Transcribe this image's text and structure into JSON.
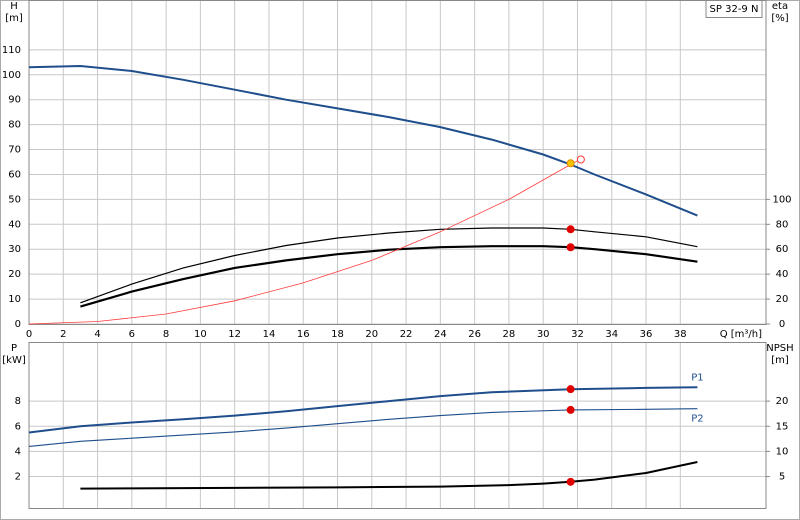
{
  "chart_data": [
    {
      "type": "line",
      "model": "SP 32-9 N",
      "ylabel": [
        "H",
        "[m]"
      ],
      "y2label": [
        "eta",
        "[%]"
      ],
      "xlabel": "Q [m³/h]",
      "xlim": [
        0,
        43
      ],
      "xticks": [
        0,
        2,
        4,
        6,
        8,
        10,
        12,
        14,
        16,
        18,
        20,
        22,
        24,
        26,
        28,
        30,
        32,
        34,
        36,
        38
      ],
      "ylim": [
        0,
        130
      ],
      "yticks": [
        0,
        10,
        20,
        30,
        40,
        50,
        60,
        70,
        80,
        90,
        100,
        110
      ],
      "y2lim": [
        0,
        260
      ],
      "y2ticks": [
        0,
        20,
        40,
        60,
        80,
        100
      ],
      "grid": true,
      "series": [
        {
          "color": "#1f4e8c",
          "width": 2,
          "x": [
            0,
            3,
            6,
            9,
            12,
            15,
            18,
            21,
            24,
            27,
            30,
            31.6,
            33,
            36,
            39
          ],
          "values": [
            103,
            103.5,
            101.5,
            98,
            94,
            90,
            86.5,
            83,
            79,
            74,
            68,
            64,
            60,
            52,
            43.5
          ]
        },
        {
          "color": "#000000",
          "width": 1.2,
          "axis": "y2",
          "x": [
            3,
            6,
            9,
            12,
            15,
            18,
            21,
            24,
            27,
            30,
            31.6,
            33,
            36,
            39
          ],
          "values": [
            17,
            32,
            45,
            55,
            63,
            69,
            73,
            76,
            77,
            77,
            76,
            74,
            70,
            62
          ]
        },
        {
          "color": "#000000",
          "width": 2.2,
          "axis": "y2",
          "x": [
            3,
            6,
            9,
            12,
            15,
            18,
            21,
            24,
            27,
            30,
            31.6,
            33,
            36,
            39
          ],
          "values": [
            14,
            26,
            36,
            45,
            51,
            56,
            59.6,
            61.6,
            62.4,
            62.4,
            61.6,
            60,
            56,
            50
          ]
        },
        {
          "color": "#ff3b3b",
          "width": 0.8,
          "x": [
            0,
            4,
            8,
            12,
            16,
            20,
            24,
            28,
            31.6,
            32
          ],
          "values": [
            0,
            1,
            4,
            9.3,
            16.5,
            25.5,
            37,
            50,
            64,
            65.5
          ]
        },
        {
          "color": "#ff3b3b",
          "style": "ring",
          "x": [
            32.2
          ],
          "values": [
            66
          ]
        },
        {
          "color": "#f5c400",
          "style": "dot",
          "x": [
            31.6
          ],
          "values": [
            64.5
          ]
        },
        {
          "color": "#e00000",
          "style": "dot",
          "axis": "y2",
          "x": [
            31.6,
            31.6
          ],
          "values": [
            76,
            61.6
          ]
        }
      ]
    },
    {
      "type": "line",
      "sharex": true,
      "ylabel": [
        "P",
        "[kW]"
      ],
      "y2label": [
        "NPSH",
        "[m]"
      ],
      "xlim": [
        0,
        43
      ],
      "ylim": [
        -0.5,
        12.7
      ],
      "yticks": [
        2,
        4,
        6,
        8
      ],
      "y2lim": [
        -1.25,
        31.75
      ],
      "y2ticks": [
        5,
        10,
        15,
        20
      ],
      "grid": true,
      "series": [
        {
          "name": "P1",
          "color": "#1f4e8c",
          "width": 2,
          "x": [
            0,
            3,
            6,
            9,
            12,
            15,
            18,
            21,
            24,
            27,
            31.6,
            36,
            39
          ],
          "values": [
            5.5,
            6,
            6.3,
            6.55,
            6.85,
            7.2,
            7.6,
            8,
            8.4,
            8.7,
            8.95,
            9.05,
            9.1
          ]
        },
        {
          "name": "P2",
          "color": "#1f4e8c",
          "width": 1.1,
          "x": [
            0,
            3,
            6,
            9,
            12,
            15,
            18,
            21,
            24,
            27,
            31.6,
            36,
            39
          ],
          "values": [
            4.4,
            4.8,
            5.05,
            5.3,
            5.55,
            5.85,
            6.2,
            6.55,
            6.85,
            7.1,
            7.3,
            7.35,
            7.4
          ]
        },
        {
          "color": "#000000",
          "width": 2,
          "axis": "y2",
          "x": [
            3,
            6,
            12,
            18,
            24,
            28,
            30,
            31.6,
            33,
            36,
            39
          ],
          "values": [
            2.6,
            2.65,
            2.75,
            2.85,
            3,
            3.3,
            3.6,
            3.95,
            4.4,
            5.7,
            7.9
          ]
        },
        {
          "color": "#e00000",
          "style": "dot",
          "x": [
            31.6,
            31.6
          ],
          "values": [
            8.95,
            7.3
          ]
        },
        {
          "color": "#e00000",
          "style": "dot",
          "axis": "y2",
          "x": [
            31.6
          ],
          "values": [
            3.95
          ]
        }
      ]
    }
  ]
}
